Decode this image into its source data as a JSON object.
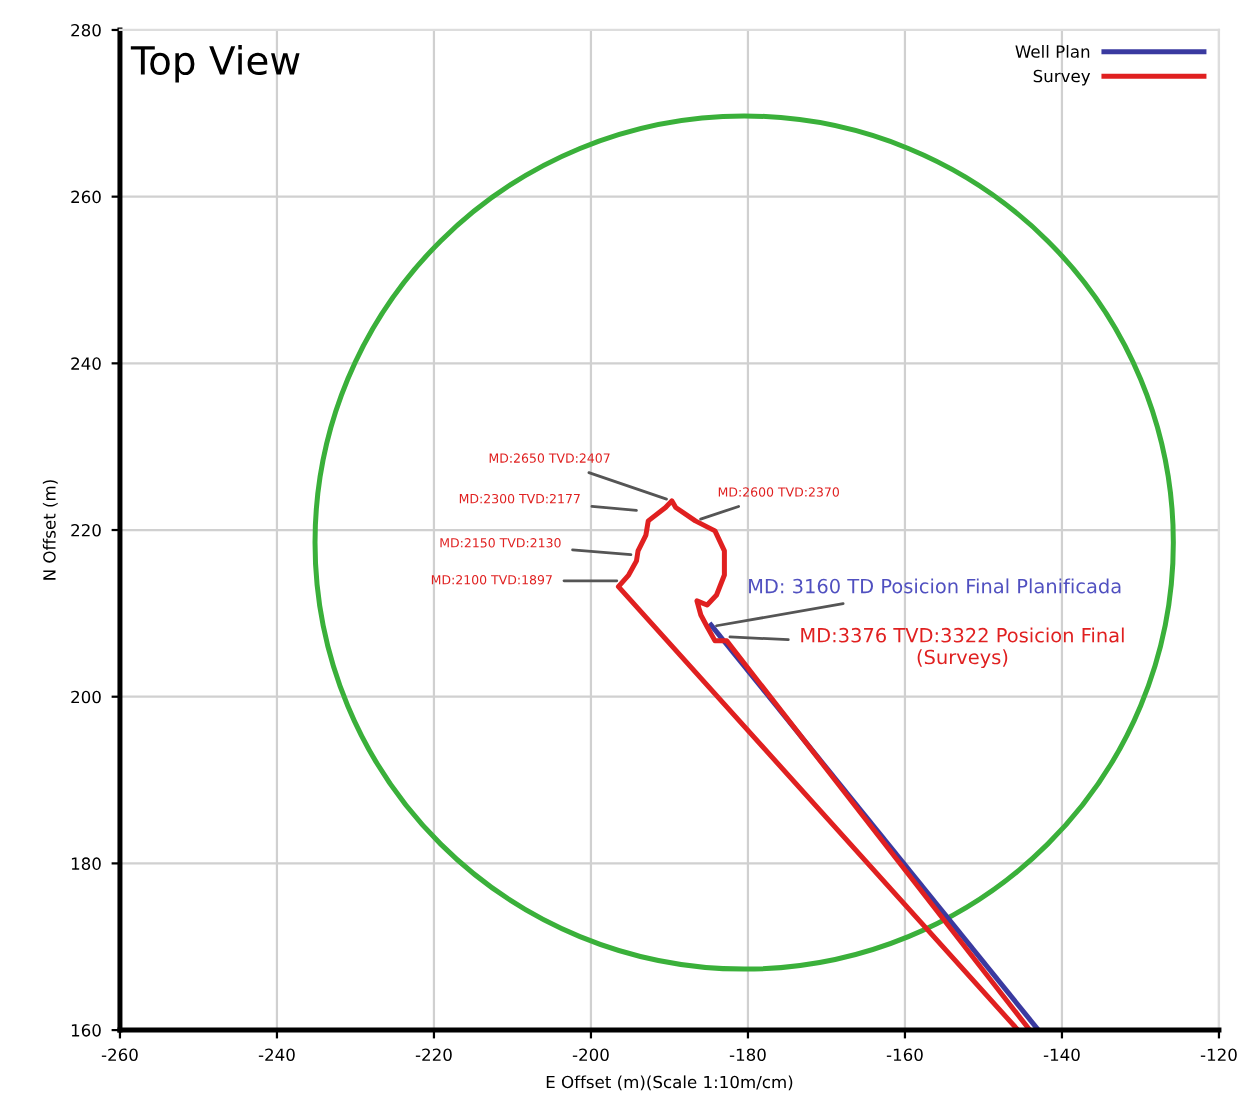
{
  "chart_data": {
    "type": "line",
    "title": "Top View",
    "xlabel": "E Offset (m)(Scale 1:10m/cm)",
    "ylabel": "N Offset (m)",
    "xlim": [
      -260,
      -120
    ],
    "xticks": [
      -260,
      -240,
      -220,
      -200,
      -180,
      -160,
      -140,
      -120
    ],
    "ylim": [
      160,
      280
    ],
    "yticks": [
      160,
      180,
      200,
      220,
      240,
      260,
      280
    ],
    "grid": true,
    "legend": "top right",
    "marker": "none",
    "line_style": "solid",
    "series": [
      {
        "name": "Well Plan",
        "color": "#3a3aa0",
        "x": [
          -143.0,
          -184.7
        ],
        "values": [
          160,
          208.6
        ]
      },
      {
        "name": "Survey",
        "color": "#e02020",
        "x": [
          -145.6,
          -196.5,
          -195.2,
          -194.2,
          -194.0,
          -193.0,
          -192.7,
          -190.5,
          -189.7,
          -189.2,
          -186.7,
          -184.2,
          -183.0,
          -183.0,
          -184.0,
          -185.2,
          -186.5,
          -186.0,
          -185.2,
          -184.2,
          -182.7,
          -144.1
        ],
        "values": [
          160,
          213.2,
          214.6,
          216.3,
          217.5,
          219.4,
          221.1,
          222.7,
          223.5,
          222.7,
          221.1,
          219.9,
          217.5,
          214.6,
          212.2,
          211.0,
          211.5,
          209.8,
          208.4,
          206.7,
          206.7,
          160
        ]
      }
    ],
    "annotations": [
      {
        "text": "MD:2650 TVD:2407",
        "x": -189.7,
        "y": 223.5
      },
      {
        "text": "MD:2300 TVD:2177",
        "x": -193.5,
        "y": 222.3
      },
      {
        "text": "MD:2150 TVD:2130",
        "x": -194.2,
        "y": 217.0
      },
      {
        "text": "MD:2100 TVD:1897",
        "x": -196.0,
        "y": 213.9
      },
      {
        "text": "MD:2600 TVD:2370",
        "x": -186.7,
        "y": 221.1
      },
      {
        "text": "MD: 3160 TD Posicion Final Planificada",
        "x": -184.7,
        "y": 208.4
      },
      {
        "text": "MD:3376 TVD:3322 Posicion Final\n(Surveys)",
        "x": -183.0,
        "y": 207.2
      }
    ]
  }
}
